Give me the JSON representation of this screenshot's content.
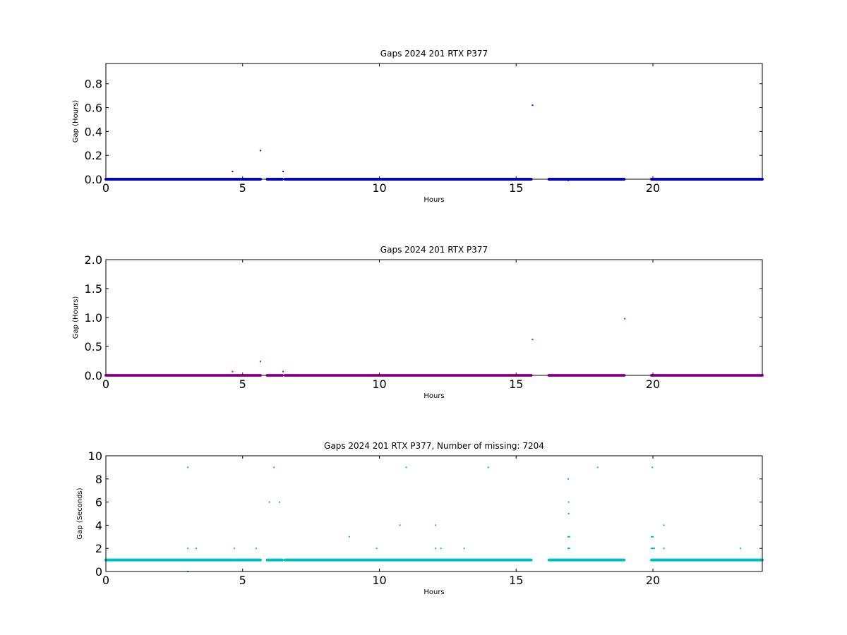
{
  "chart_data": [
    {
      "type": "scatter",
      "title": "Gaps 2024 201 RTX  P377",
      "xlabel": "Hours",
      "ylabel": "Gap (Hours)",
      "xlim": [
        0,
        24
      ],
      "ylim": [
        0,
        0.97
      ],
      "xticks": [
        "0",
        "5",
        "10",
        "15",
        "20"
      ],
      "xtick_values": [
        0,
        5,
        10,
        15,
        20
      ],
      "yticks": [
        "0.0",
        "0.2",
        "0.4",
        "0.6",
        "0.8"
      ],
      "ytick_values": [
        0.0,
        0.2,
        0.4,
        0.6,
        0.8
      ],
      "grid": false,
      "color": "#0000ff",
      "baseline_segments": [
        [
          0,
          4.6
        ],
        [
          4.65,
          5.65
        ],
        [
          5.9,
          6.45
        ],
        [
          6.55,
          15.55
        ],
        [
          16.2,
          18.95
        ],
        [
          19.95,
          24
        ]
      ],
      "baseline_value": 0.0,
      "points": [
        {
          "x": 4.63,
          "y": 0.065
        },
        {
          "x": 5.65,
          "y": 0.24
        },
        {
          "x": 6.48,
          "y": 0.065
        },
        {
          "x": 15.6,
          "y": 0.62
        },
        {
          "x": 16.9,
          "y": -0.01
        }
      ]
    },
    {
      "type": "scatter",
      "title": "Gaps 2024 201 RTX  P377",
      "xlabel": "Hours",
      "ylabel": "Gap (Hours)",
      "xlim": [
        0,
        24
      ],
      "ylim": [
        0,
        2.0
      ],
      "xticks": [
        "0",
        "5",
        "10",
        "15",
        "20"
      ],
      "xtick_values": [
        0,
        5,
        10,
        15,
        20
      ],
      "yticks": [
        "0.0",
        "0.5",
        "1.0",
        "1.5",
        "2.0"
      ],
      "ytick_values": [
        0.0,
        0.5,
        1.0,
        1.5,
        2.0
      ],
      "grid": false,
      "color": "#bf00bf",
      "baseline_segments": [
        [
          0,
          4.6
        ],
        [
          4.65,
          5.65
        ],
        [
          5.9,
          6.45
        ],
        [
          6.55,
          15.55
        ],
        [
          16.2,
          18.95
        ],
        [
          19.95,
          24
        ]
      ],
      "baseline_value": 0.0,
      "points": [
        {
          "x": 4.63,
          "y": 0.065
        },
        {
          "x": 5.65,
          "y": 0.24
        },
        {
          "x": 6.48,
          "y": 0.065
        },
        {
          "x": 15.6,
          "y": 0.62
        },
        {
          "x": 18.97,
          "y": 0.98
        }
      ]
    },
    {
      "type": "scatter",
      "title": "Gaps 2024 201 RTX  P377, Number of missing: 7204",
      "xlabel": "Hours",
      "ylabel": "Gap (Seconds)",
      "xlim": [
        0,
        24
      ],
      "ylim": [
        0,
        10
      ],
      "xticks": [
        "0",
        "5",
        "10",
        "15",
        "20"
      ],
      "xtick_values": [
        0,
        5,
        10,
        15,
        20
      ],
      "yticks": [
        "0",
        "2",
        "4",
        "6",
        "8",
        "10"
      ],
      "ytick_values": [
        0,
        2,
        4,
        6,
        8,
        10
      ],
      "grid": false,
      "color": "#00bfbf",
      "baseline_segments": [
        [
          0,
          4.6
        ],
        [
          4.65,
          5.65
        ],
        [
          5.9,
          6.45
        ],
        [
          6.55,
          15.55
        ],
        [
          16.2,
          18.95
        ],
        [
          19.95,
          24
        ]
      ],
      "baseline_value": 1,
      "points": [
        {
          "x": 3.0,
          "y": 9
        },
        {
          "x": 3.0,
          "y": 2
        },
        {
          "x": 3.0,
          "y": 0
        },
        {
          "x": 3.3,
          "y": 2
        },
        {
          "x": 4.7,
          "y": 2
        },
        {
          "x": 5.5,
          "y": 2
        },
        {
          "x": 5.98,
          "y": 6
        },
        {
          "x": 6.15,
          "y": 9
        },
        {
          "x": 6.35,
          "y": 6
        },
        {
          "x": 8.9,
          "y": 3
        },
        {
          "x": 9.9,
          "y": 2
        },
        {
          "x": 10.75,
          "y": 4
        },
        {
          "x": 10.98,
          "y": 9
        },
        {
          "x": 12.05,
          "y": 4
        },
        {
          "x": 12.05,
          "y": 2
        },
        {
          "x": 12.25,
          "y": 2
        },
        {
          "x": 13.1,
          "y": 2
        },
        {
          "x": 13.98,
          "y": 9
        },
        {
          "x": 16.9,
          "y": 8
        },
        {
          "x": 16.92,
          "y": 6
        },
        {
          "x": 16.92,
          "y": 5
        },
        {
          "x": 16.9,
          "y": 3
        },
        {
          "x": 16.95,
          "y": 3
        },
        {
          "x": 16.9,
          "y": 2
        },
        {
          "x": 16.95,
          "y": 2
        },
        {
          "x": 17.98,
          "y": 9
        },
        {
          "x": 19.98,
          "y": 9
        },
        {
          "x": 19.95,
          "y": 3
        },
        {
          "x": 20.0,
          "y": 3
        },
        {
          "x": 19.95,
          "y": 2
        },
        {
          "x": 20.0,
          "y": 2
        },
        {
          "x": 20.05,
          "y": 2
        },
        {
          "x": 20.4,
          "y": 4
        },
        {
          "x": 20.4,
          "y": 2
        },
        {
          "x": 23.2,
          "y": 2
        }
      ]
    }
  ]
}
